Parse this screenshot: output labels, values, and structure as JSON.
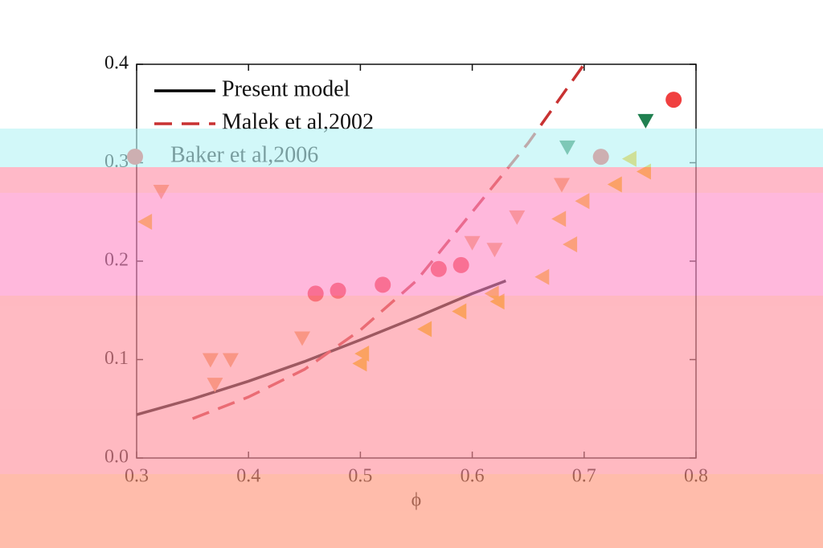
{
  "chart_data": {
    "type": "line",
    "xlabel": "ϕ",
    "xlim": [
      0.3,
      0.8
    ],
    "xticks": [
      0.3,
      0.4,
      0.5,
      0.6,
      0.7,
      0.8
    ],
    "ylim": [
      0.0,
      0.4
    ],
    "yticks": [
      {
        "value": 0,
        "label": "0.0"
      },
      0.1,
      0.2,
      0.3,
      0.4
    ],
    "legend": "upper-left",
    "series": [
      {
        "name": "Present model",
        "color": "#000000",
        "marker": "none",
        "dash": false,
        "x": [
          0.3,
          0.35,
          0.4,
          0.45,
          0.5,
          0.55,
          0.6,
          0.63
        ],
        "values": [
          0.044,
          0.06,
          0.078,
          0.098,
          0.12,
          0.143,
          0.167,
          0.18
        ]
      },
      {
        "name": "Malek et al,2002",
        "color": "#c83232",
        "marker": "none",
        "dash": true,
        "x": [
          0.35,
          0.4,
          0.45,
          0.5,
          0.55,
          0.6,
          0.65,
          0.7
        ],
        "values": [
          0.04,
          0.062,
          0.09,
          0.13,
          0.18,
          0.25,
          0.32,
          0.4
        ]
      },
      {
        "name": "Baker et al,2006",
        "color": "#f04040",
        "marker": "circle",
        "dash": false,
        "x": [
          0.46,
          0.48,
          0.52,
          0.57,
          0.59,
          0.715,
          0.78
        ],
        "values": [
          0.167,
          0.17,
          0.176,
          0.192,
          0.196,
          0.306,
          0.364
        ]
      },
      {
        "color": "#208050",
        "marker": "triangle-down",
        "dash": false,
        "x": [
          0.685,
          0.755
        ],
        "values": [
          0.316,
          0.343
        ]
      },
      {
        "color": "#f0a060",
        "marker": "triangle-down",
        "dash": false,
        "x": [
          0.322,
          0.366,
          0.37,
          0.384,
          0.448,
          0.6,
          0.62,
          0.64,
          0.68
        ],
        "values": [
          0.271,
          0.1,
          0.075,
          0.1,
          0.122,
          0.219,
          0.212,
          0.245,
          0.278
        ]
      },
      {
        "color": "#f5c000",
        "marker": "triangle-left",
        "dash": false,
        "x": [
          0.308,
          0.5,
          0.502,
          0.558,
          0.589,
          0.618,
          0.623,
          0.663,
          0.678,
          0.688,
          0.699,
          0.728,
          0.741,
          0.754
        ],
        "values": [
          0.24,
          0.096,
          0.106,
          0.131,
          0.149,
          0.167,
          0.159,
          0.184,
          0.243,
          0.217,
          0.261,
          0.278,
          0.304,
          0.291
        ]
      }
    ]
  }
}
